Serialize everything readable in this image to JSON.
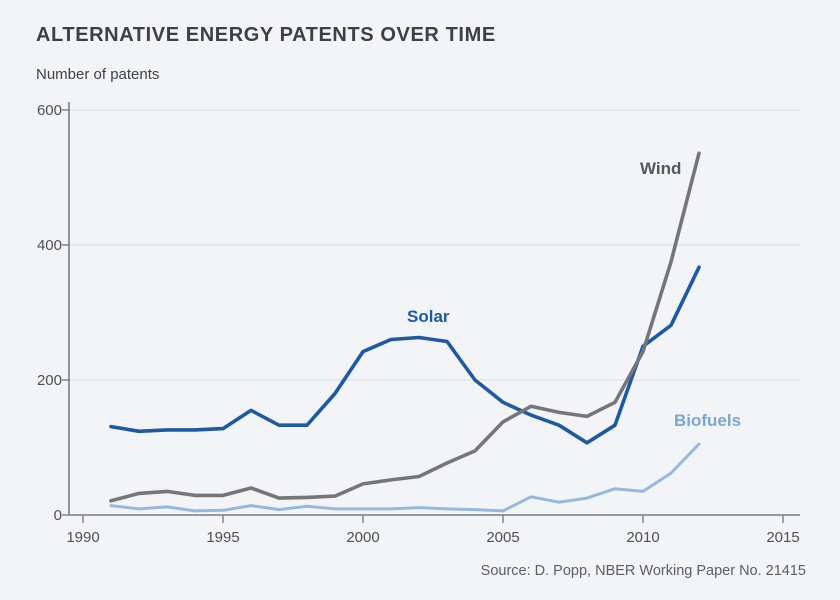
{
  "header": {
    "title": "ALTERNATIVE ENERGY PATENTS OVER TIME",
    "y_axis_title": "Number of patents"
  },
  "footer": {
    "source": "Source: D. Popp, NBER Working Paper No. 21415"
  },
  "colors": {
    "background": "#f3f4f7",
    "title_text": "#3e4046",
    "axis_text": "#4d4f55",
    "grid_line": "#e1e2e6",
    "axis_line": "#7b7d82",
    "solar_line": "#1d59a5",
    "wind_line": "#75767a",
    "biofuels_line": "#93b9e0",
    "solar_label": "#1d59a5",
    "wind_label": "#55575c",
    "biofuels_label": "#7aa7d6",
    "source_text": "#5c5e64"
  },
  "chart_data": {
    "type": "line",
    "title": "ALTERNATIVE ENERGY PATENTS OVER TIME",
    "xlabel": "",
    "ylabel": "Number of patents",
    "xlim": [
      1989.5,
      2015.6
    ],
    "ylim": [
      0,
      600
    ],
    "x_ticks": [
      1990,
      1995,
      2000,
      2005,
      2010,
      2015
    ],
    "y_ticks": [
      0,
      200,
      400,
      600
    ],
    "grid": "horizontal gridlines at 200, 400, 600",
    "legend": "inline series labels near lines",
    "x": [
      1991,
      1992,
      1993,
      1994,
      1995,
      1996,
      1997,
      1998,
      1999,
      2000,
      2001,
      2002,
      2003,
      2004,
      2005,
      2006,
      2007,
      2008,
      2009,
      2010,
      2011,
      2012
    ],
    "series": [
      {
        "name": "Biofuels",
        "color_key": "biofuels_line",
        "label_color_key": "biofuels_label",
        "label_pos": {
          "x": 674,
          "y": 412
        },
        "values": [
          14,
          9,
          12,
          6,
          7,
          14,
          8,
          13,
          9,
          9,
          9,
          11,
          9,
          8,
          6,
          27,
          19,
          25,
          39,
          35,
          62,
          105
        ]
      },
      {
        "name": "Solar",
        "color_key": "solar_line",
        "label_color_key": "solar_label",
        "label_pos": {
          "x": 407,
          "y": 308
        },
        "values": [
          131,
          124,
          126,
          126,
          128,
          155,
          133,
          133,
          180,
          242,
          260,
          263,
          257,
          200,
          167,
          148,
          133,
          107,
          133,
          250,
          281,
          367
        ]
      },
      {
        "name": "Wind",
        "color_key": "wind_line",
        "label_color_key": "wind_label",
        "label_pos": {
          "x": 640,
          "y": 160
        },
        "values": [
          21,
          32,
          35,
          29,
          29,
          40,
          25,
          26,
          28,
          46,
          52,
          57,
          77,
          95,
          138,
          161,
          152,
          146,
          167,
          242,
          375,
          536
        ]
      }
    ]
  }
}
